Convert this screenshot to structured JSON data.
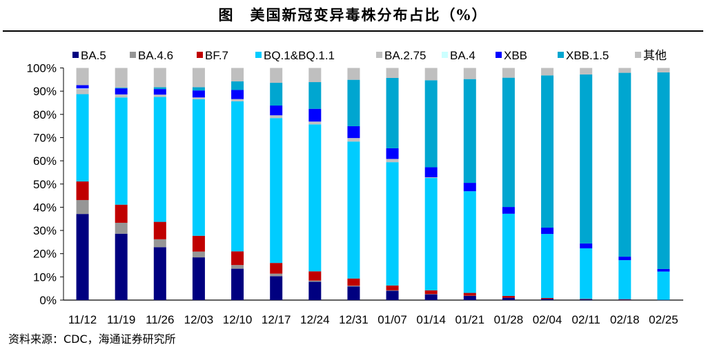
{
  "title": "图　美国新冠变异毒株分布占比（%）",
  "source": "资料来源：CDC，海通证券研究所",
  "chart_data": {
    "type": "bar",
    "stacked": true,
    "title": "图　美国新冠变异毒株分布占比（%）",
    "xlabel": "",
    "ylabel": "",
    "ylim": [
      0,
      100
    ],
    "yticks": [
      "0%",
      "10%",
      "20%",
      "30%",
      "40%",
      "50%",
      "60%",
      "70%",
      "80%",
      "90%",
      "100%"
    ],
    "grid": false,
    "legend_position": "top",
    "categories": [
      "11/12",
      "11/19",
      "11/26",
      "12/03",
      "12/10",
      "12/17",
      "12/24",
      "12/31",
      "01/07",
      "01/14",
      "01/21",
      "01/28",
      "02/04",
      "02/11",
      "02/18",
      "02/25"
    ],
    "series": [
      {
        "name": "BA.5",
        "color": "#000080",
        "values": [
          37.1,
          28.6,
          22.8,
          18.4,
          13.5,
          10.3,
          7.9,
          5.9,
          4.0,
          2.5,
          1.8,
          1.0,
          0.5,
          0.3,
          0.2,
          0.1
        ]
      },
      {
        "name": "BA.4.6",
        "color": "#969696",
        "values": [
          6.0,
          4.7,
          3.4,
          2.5,
          1.6,
          1.1,
          0.5,
          0.3,
          0.2,
          0.1,
          0.1,
          0.0,
          0.0,
          0.0,
          0.0,
          0.0
        ]
      },
      {
        "name": "BF.7",
        "color": "#c00000",
        "values": [
          8.0,
          7.8,
          7.5,
          6.8,
          5.9,
          4.6,
          4.0,
          3.1,
          2.1,
          1.6,
          1.2,
          0.8,
          0.4,
          0.2,
          0.2,
          0.0
        ]
      },
      {
        "name": "BQ.1&BQ.1.1",
        "color": "#00ccff",
        "values": [
          37.6,
          46.2,
          53.8,
          58.8,
          64.6,
          62.4,
          63.3,
          59.0,
          53.1,
          48.4,
          43.8,
          35.4,
          27.6,
          21.8,
          16.8,
          12.2
        ]
      },
      {
        "name": "BA.2.75",
        "color": "#c0c0c0",
        "values": [
          2.3,
          1.3,
          1.0,
          0.8,
          1.0,
          1.2,
          1.2,
          1.5,
          1.4,
          0.3,
          0.0,
          0.0,
          0.0,
          0.0,
          0.0,
          0.0
        ]
      },
      {
        "name": "BA.4",
        "color": "#ccffff",
        "values": [
          0.2,
          0.0,
          0.0,
          0.0,
          0.0,
          0.0,
          0.0,
          0.0,
          0.0,
          0.0,
          0.0,
          0.0,
          0.0,
          0.0,
          0.0,
          0.0
        ]
      },
      {
        "name": "XBB",
        "color": "#0000ff",
        "values": [
          1.4,
          2.6,
          2.4,
          3.0,
          3.9,
          4.2,
          5.5,
          5.1,
          4.6,
          4.3,
          3.6,
          2.9,
          2.7,
          2.1,
          1.5,
          1.1
        ]
      },
      {
        "name": "XBB.1.5",
        "color": "#00a6d0",
        "values": [
          0.0,
          0.3,
          0.8,
          1.4,
          3.7,
          9.8,
          11.5,
          20.0,
          30.3,
          37.5,
          44.7,
          55.7,
          65.6,
          72.8,
          79.2,
          84.7
        ]
      },
      {
        "name": "其他",
        "color": "#bfbfbf",
        "values": [
          7.4,
          8.5,
          8.3,
          8.3,
          5.8,
          6.4,
          6.1,
          5.1,
          4.3,
          5.3,
          4.8,
          4.2,
          3.2,
          2.8,
          2.1,
          1.9
        ]
      }
    ]
  }
}
